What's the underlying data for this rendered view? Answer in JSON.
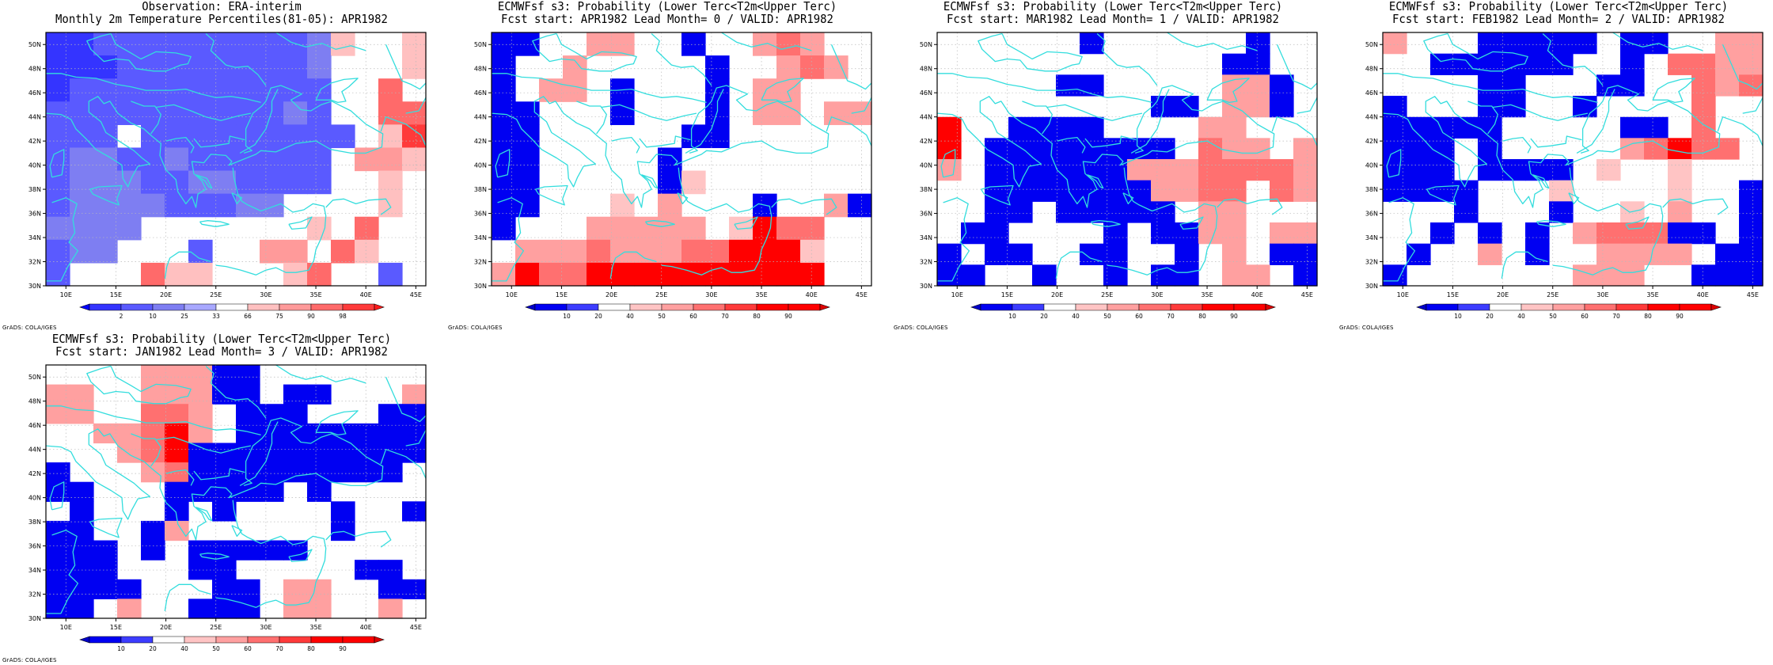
{
  "credit": "GrADS: COLA/IGES",
  "colors": {
    "obs": {
      "2": "#3434ff",
      "10": "#5a5aff",
      "25": "#7e7ef2",
      "33": "#a8a8ff",
      "66": "#ffffff",
      "75": "#ffc0c0",
      "90": "#ff9a9a",
      "98": "#ff6a6a",
      "99": "#ff3a3a"
    },
    "prob": {
      "10": "#0000f2",
      "20": "#3c3cff",
      "40": "#ffffff",
      "50": "#ffc4c4",
      "60": "#ffa0a0",
      "70": "#ff7070",
      "80": "#ff3a3a",
      "90": "#ff0000"
    },
    "coast": "#33dddd"
  },
  "map": {
    "lat_labels": [
      "30N",
      "32N",
      "34N",
      "36N",
      "38N",
      "40N",
      "42N",
      "44N",
      "46N",
      "48N",
      "50N"
    ],
    "lon_labels": [
      "10E",
      "15E",
      "20E",
      "25E",
      "30E",
      "35E",
      "40E",
      "45E"
    ]
  },
  "panels": [
    {
      "title1": "Observation: ERA-interim",
      "title2": "Monthly 2m Temperature Percentiles(81-05): APR1982",
      "colorbar": {
        "stops": [
          "2",
          "10",
          "25",
          "33",
          "66",
          "75",
          "90",
          "98"
        ],
        "labels": [
          "2",
          "10",
          "25",
          "33",
          "66",
          "75",
          "90",
          "98"
        ],
        "lowColor": "#0000ff",
        "highColor": "#ff1a1a"
      },
      "grid": [
        "AABBBBBBBBBCF..F",
        "AAABBBBBBBBC...F",
        "ABBBBBBBBBBB..H.",
        "BBBBBBBBBBCB..HH",
        "BBB.BBBBBBBBB.FI",
        "BCCBBCBBBBBB.GGF",
        "BCCCBBCCBBBB..F.",
        "BCCCCBBBCC....F.",
        "CCCC.......F.H..",
        "BCC...B..GG.HF..",
        "B...HFF...FH..B."
      ]
    },
    {
      "title1": "ECMWFsf s3: Probability (Lower Terc<T2m<Upper Terc)",
      "title2": "Fcst start: APR1982  Lead Month= 0 / VALID: APR1982",
      "colorbar": {
        "stops": [
          "10",
          "20",
          "40",
          "50",
          "60",
          "70",
          "80",
          "90"
        ],
        "labels": [
          "10",
          "20",
          "40",
          "50",
          "60",
          "70",
          "80",
          "90"
        ],
        "lowColor": "#0000c8",
        "highColor": "#dd0000"
      },
      "grid": [
        "AA..GG..A..GHG..",
        "A..G.....A..GHG.",
        "A.GG.A...A.GG...",
        "AA...A...A.GG.GG",
        "AA......AA......",
        "AA.....A........",
        "AA.....AF.......",
        "AA...F.G...A..GA",
        "A...GGGGG.FJHH..",
        ".GGGHGGGHHJJJF..",
        "GJHHJJJJJJJJJJ.."
      ]
    },
    {
      "title1": "ECMWFsf s3: Probability (Lower Terc<T2m<Upper Terc)",
      "title2": "Fcst start: MAR1982  Lead Month= 1 / VALID: APR1982",
      "colorbar": {
        "stops": [
          "10",
          "20",
          "40",
          "50",
          "60",
          "70",
          "80",
          "90"
        ],
        "labels": [
          "10",
          "20",
          "40",
          "50",
          "60",
          "70",
          "80",
          "90"
        ],
        "lowColor": "#0000c8",
        "highColor": "#dd0000"
      },
      "grid": [
        "......A......A..",
        "............AA..",
        ".....AA.....GGA.",
        ".........AA.GGA.",
        "J..AAAA....GG...",
        "J.AAAAAAAA.HGG.G",
        "G.AAAAAAGGGHHHHG",
        "..AAAAAAAGGHH.HG",
        "..AA.AAAAA.GG...",
        ".AA....A.AAGG.GG",
        "A.AA..AA..A.G.AA",
        "AA..A..A.AA.GG.A"
      ]
    },
    {
      "title1": "ECMWFsf s3: Probability (Lower Terc<T2m<Upper Terc)",
      "title2": "Fcst start: FEB1982  Lead Month= 2 / VALID: APR1982",
      "colorbar": {
        "stops": [
          "10",
          "20",
          "40",
          "50",
          "60",
          "70",
          "80",
          "90"
        ],
        "labels": [
          "10",
          "20",
          "40",
          "50",
          "60",
          "70",
          "80",
          "90"
        ],
        "lowColor": "#0000c8",
        "highColor": "#dd0000"
      },
      "grid": [
        "G...AAAAA.AA..GG",
        "..AAAAAA..A.HHGG",
        "....AA...AA..HGH",
        "A...AA..A....H..",
        "AAAAA.....AA.H..",
        "AAA.A.....GHJHH.",
        "AAA.AAAA.F..F...",
        "AAAA...F....F..A",
        "...A...A..F.G..A",
        "..A.A.A.GHHHAA.A",
        ".A..G.A..GGGG.AA",
        "A.......GGG..AAA"
      ]
    },
    {
      "title1": "ECMWFsf s3: Probability (Lower Terc<T2m<Upper Terc)",
      "title2": "Fcst start: JAN1982  Lead Month= 3 / VALID: APR1982",
      "colorbar": {
        "stops": [
          "10",
          "20",
          "40",
          "50",
          "60",
          "70",
          "80",
          "90"
        ],
        "labels": [
          "10",
          "20",
          "40",
          "50",
          "60",
          "70",
          "80",
          "90"
        ],
        "lowColor": "#0000c8",
        "highColor": "#dd0000"
      },
      "grid": [
        "....GGGAA.......",
        "GG..GGGAA.AA...G",
        "GG..HHG.AAA...AA",
        "..GGHJG.AAAAAAAA",
        "...GHJAAAAAAAAAA",
        "A...GHAAAAAAAAA.",
        "AA...AAAAA.A....",
        ".A...A.A....A..A",
        "AA..AG......A...",
        "AAA.A.AAAAA.....",
        "AAA...AA.....AA.",
        "AAAA...AA.GG..AA",
        "AA.G..AAA.GG..G."
      ]
    }
  ]
}
